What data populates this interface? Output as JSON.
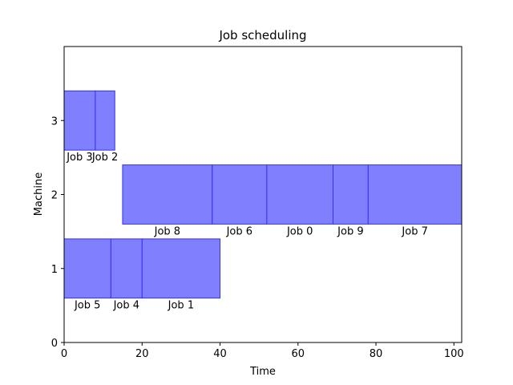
{
  "chart_data": {
    "type": "bar",
    "orientation": "horizontal-gantt",
    "title": "Job scheduling",
    "xlabel": "Time",
    "ylabel": "Machine",
    "xlim": [
      0,
      102
    ],
    "ylim": [
      0,
      4
    ],
    "xticks": [
      0,
      20,
      40,
      60,
      80,
      100
    ],
    "yticks": [
      0,
      1,
      2,
      3
    ],
    "bar_height": 0.8,
    "grid": false,
    "fill_color": "#8080ff",
    "edge_color": "#3333ee",
    "tasks": [
      {
        "label": "Job 5",
        "machine": 1,
        "start": 0,
        "end": 12
      },
      {
        "label": "Job 4",
        "machine": 1,
        "start": 12,
        "end": 20
      },
      {
        "label": "Job 1",
        "machine": 1,
        "start": 20,
        "end": 40
      },
      {
        "label": "Job 8",
        "machine": 2,
        "start": 15,
        "end": 38
      },
      {
        "label": "Job 6",
        "machine": 2,
        "start": 38,
        "end": 52
      },
      {
        "label": "Job 0",
        "machine": 2,
        "start": 52,
        "end": 69
      },
      {
        "label": "Job 9",
        "machine": 2,
        "start": 69,
        "end": 78
      },
      {
        "label": "Job 7",
        "machine": 2,
        "start": 78,
        "end": 102
      },
      {
        "label": "Job 3",
        "machine": 3,
        "start": 0,
        "end": 8
      },
      {
        "label": "Job 2",
        "machine": 3,
        "start": 8,
        "end": 13
      }
    ]
  }
}
